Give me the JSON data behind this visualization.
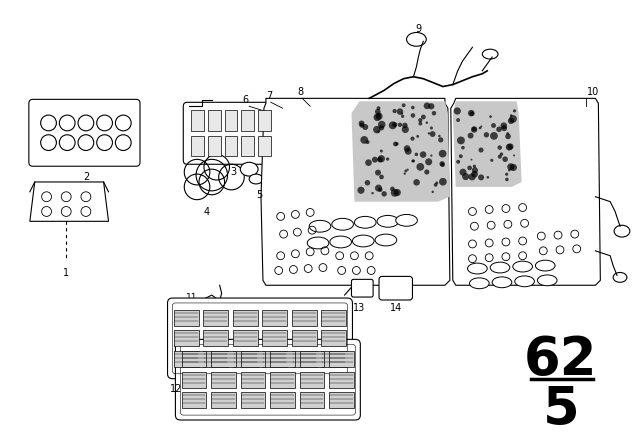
{
  "bg_color": "#ffffff",
  "line_color": "#000000",
  "fig_width": 6.4,
  "fig_height": 4.48,
  "dpi": 100,
  "page_number": "62",
  "page_sub": "5"
}
